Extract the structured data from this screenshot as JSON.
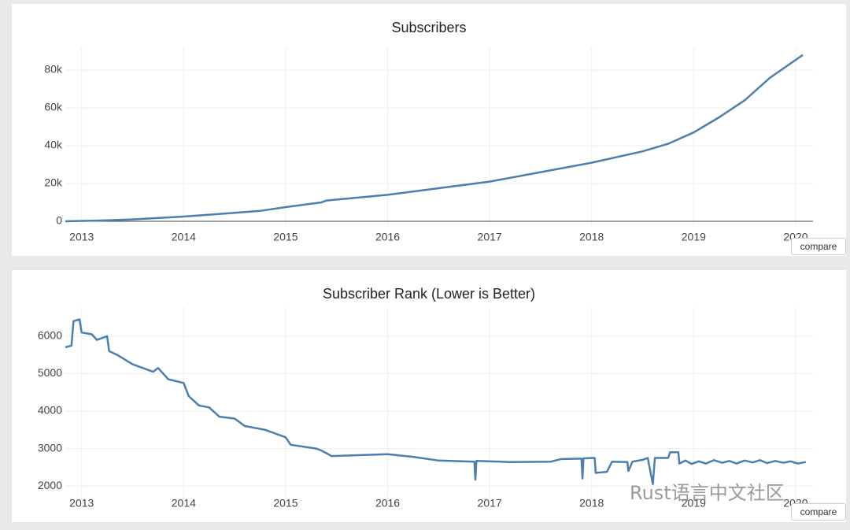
{
  "chart_data": [
    {
      "type": "line",
      "title": "Subscribers",
      "color": "#4a7fb0",
      "x": [
        2012.84,
        2013.25,
        2013.5,
        2014,
        2014.5,
        2014.75,
        2015,
        2015.35,
        2015.4,
        2016,
        2016.5,
        2017,
        2017.5,
        2018,
        2018.5,
        2018.75,
        2019,
        2019.25,
        2019.5,
        2019.75,
        2020.07
      ],
      "values": [
        0,
        500,
        1000,
        2500,
        4500,
        5500,
        7500,
        10000,
        11000,
        14000,
        17500,
        21000,
        26000,
        31000,
        37000,
        41000,
        47000,
        55000,
        64000,
        76000,
        88000
      ],
      "xlim": [
        2012.84,
        2020.07
      ],
      "xticks": [
        2013,
        2014,
        2015,
        2016,
        2017,
        2018,
        2019,
        2020
      ],
      "ylim": [
        0,
        90000
      ],
      "yticks": [
        0,
        {
          "value": 20000,
          "label": "20k"
        },
        {
          "value": 40000,
          "label": "40k"
        },
        {
          "value": 60000,
          "label": "60k"
        },
        {
          "value": 80000,
          "label": "80k"
        }
      ],
      "grid": true
    },
    {
      "type": "line",
      "title": "Subscriber Rank (Lower is Better)",
      "color": "#4a7fb0",
      "x": [
        2012.84,
        2012.9,
        2012.92,
        2012.98,
        2013.0,
        2013.1,
        2013.15,
        2013.25,
        2013.27,
        2013.35,
        2013.5,
        2013.7,
        2013.75,
        2013.85,
        2014,
        2014.05,
        2014.15,
        2014.25,
        2014.35,
        2014.5,
        2014.6,
        2014.8,
        2014.95,
        2015.0,
        2015.05,
        2015.3,
        2015.35,
        2015.45,
        2016,
        2016.25,
        2016.5,
        2016.85,
        2016.86,
        2016.87,
        2017.2,
        2017.6,
        2017.7,
        2017.9,
        2017.91,
        2017.92,
        2018.03,
        2018.04,
        2018.15,
        2018.2,
        2018.35,
        2018.36,
        2018.4,
        2018.5,
        2018.55,
        2018.6,
        2018.62,
        2018.75,
        2018.77,
        2018.85,
        2018.86,
        2018.92,
        2018.98,
        2019.05,
        2019.12,
        2019.2,
        2019.28,
        2019.35,
        2019.42,
        2019.5,
        2019.58,
        2019.65,
        2019.72,
        2019.8,
        2019.88,
        2019.95,
        2020.02,
        2020.1
      ],
      "values": [
        5700,
        5750,
        6400,
        6450,
        6100,
        6050,
        5900,
        6000,
        5600,
        5500,
        5250,
        5050,
        5150,
        4850,
        4750,
        4400,
        4150,
        4100,
        3850,
        3800,
        3600,
        3500,
        3350,
        3300,
        3100,
        3000,
        2950,
        2800,
        2850,
        2780,
        2680,
        2650,
        2170,
        2670,
        2640,
        2650,
        2720,
        2730,
        2200,
        2740,
        2750,
        2350,
        2380,
        2650,
        2640,
        2400,
        2650,
        2700,
        2750,
        2050,
        2750,
        2750,
        2900,
        2900,
        2600,
        2680,
        2590,
        2660,
        2600,
        2690,
        2620,
        2670,
        2600,
        2680,
        2630,
        2690,
        2610,
        2670,
        2620,
        2660,
        2600,
        2640
      ],
      "xlim": [
        2012.84,
        2020.07
      ],
      "xticks": [
        2013,
        2014,
        2015,
        2016,
        2017,
        2018,
        2019,
        2020
      ],
      "ylim": [
        1730,
        6670
      ],
      "yticks": [
        2000,
        3000,
        4000,
        5000,
        6000
      ],
      "grid": true
    }
  ],
  "buttons": [
    "compare",
    "compare"
  ],
  "watermark": "Rust语言中文社区"
}
